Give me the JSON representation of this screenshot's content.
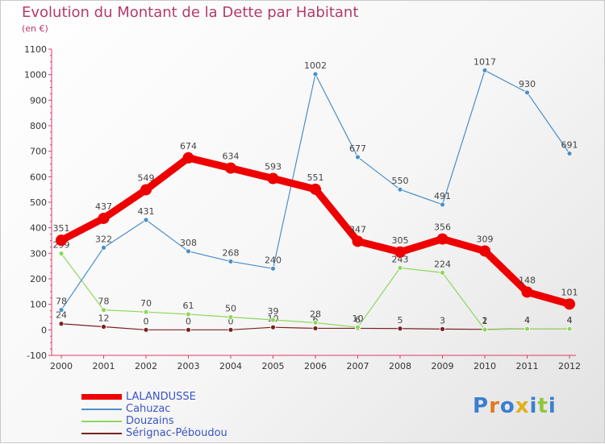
{
  "title": "Evolution du Montant de la Dette par Habitant",
  "subtitle": "(en €)",
  "logo": "Proxiti",
  "chart_data": {
    "type": "line",
    "x": [
      "2000",
      "2001",
      "2002",
      "2003",
      "2004",
      "2005",
      "2006",
      "2007",
      "2008",
      "2009",
      "2010",
      "2011",
      "2012"
    ],
    "ylim": [
      -100,
      1100
    ],
    "yticks": [
      -100,
      0,
      100,
      200,
      300,
      400,
      500,
      600,
      700,
      800,
      900,
      1000,
      1100
    ],
    "legend_position": "bottom-left",
    "grid": false,
    "series": [
      {
        "name": "LALANDUSSE",
        "color": "#ee0000",
        "values": [
          351,
          437,
          549,
          674,
          634,
          593,
          551,
          347,
          305,
          356,
          309,
          148,
          101
        ]
      },
      {
        "name": "Cahuzac",
        "color": "#4a8fc8",
        "values": [
          78,
          322,
          431,
          308,
          268,
          240,
          1002,
          677,
          550,
          491,
          1017,
          930,
          691
        ]
      },
      {
        "name": "Douzains",
        "color": "#8fd85a",
        "values": [
          299,
          78,
          70,
          61,
          50,
          39,
          28,
          10,
          243,
          224,
          1,
          4,
          4
        ]
      },
      {
        "name": "Sérignac-Péboudou",
        "color": "#7a2020",
        "values": [
          24,
          12,
          0,
          0,
          0,
          10,
          6,
          6,
          5,
          3,
          2,
          4,
          4
        ]
      }
    ]
  }
}
